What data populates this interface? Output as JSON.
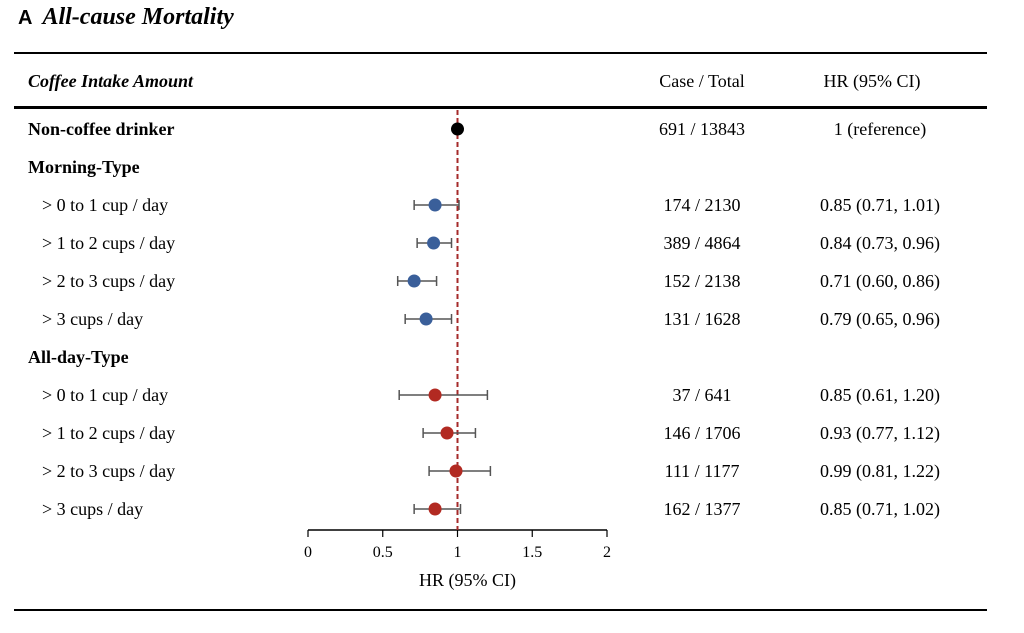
{
  "panel": {
    "letter": "A",
    "title": "All-cause Mortality"
  },
  "header": {
    "label": "Coffee Intake Amount",
    "case_total": "Case / Total",
    "hr": "HR (95% CI)"
  },
  "rows": [
    {
      "label": "Non-coffee drinker",
      "bold": true,
      "case_total": "691 / 13843",
      "hr_text": "1 (reference)"
    },
    {
      "label": "Morning-Type",
      "bold": true,
      "case_total": "",
      "hr_text": ""
    },
    {
      "label": "> 0 to 1 cup / day",
      "bold": false,
      "case_total": "174 / 2130",
      "hr_text": "0.85 (0.71, 1.01)"
    },
    {
      "label": "> 1 to 2 cups / day",
      "bold": false,
      "case_total": "389 / 4864",
      "hr_text": "0.84 (0.73, 0.96)"
    },
    {
      "label": "> 2 to 3 cups / day",
      "bold": false,
      "case_total": "152 / 2138",
      "hr_text": "0.71 (0.60, 0.86)"
    },
    {
      "label": "> 3 cups / day",
      "bold": false,
      "case_total": "131 / 1628",
      "hr_text": "0.79 (0.65, 0.96)"
    },
    {
      "label": "All-day-Type",
      "bold": true,
      "case_total": "",
      "hr_text": ""
    },
    {
      "label": "> 0 to 1 cup / day",
      "bold": false,
      "case_total": "37 / 641",
      "hr_text": "0.85 (0.61, 1.20)"
    },
    {
      "label": "> 1 to 2 cups / day",
      "bold": false,
      "case_total": "146 / 1706",
      "hr_text": "0.93 (0.77, 1.12)"
    },
    {
      "label": "> 2 to 3 cups / day",
      "bold": false,
      "case_total": "111 / 1177",
      "hr_text": "0.99 (0.81, 1.22)"
    },
    {
      "label": "> 3 cups / day",
      "bold": false,
      "case_total": "162 / 1377",
      "hr_text": "0.85 (0.71, 1.02)"
    }
  ],
  "chart_data": {
    "type": "forest",
    "title": "All-cause Mortality",
    "xlabel": "HR (95% CI)",
    "xlim": [
      0,
      2
    ],
    "xticks": [
      0,
      0.5,
      1,
      1.5,
      2
    ],
    "xtick_labels": [
      "0",
      "0.5",
      "1",
      "1.5",
      "2"
    ],
    "reference_line": 1,
    "reference_color": "#a52a2a",
    "series": [
      {
        "name": "Non-coffee drinker",
        "color": "#000000",
        "points": [
          {
            "row": 0,
            "hr": 1,
            "lo": null,
            "hi": null
          }
        ]
      },
      {
        "name": "Morning-Type",
        "color": "#3a5f9a",
        "points": [
          {
            "row": 2,
            "hr": 0.85,
            "lo": 0.71,
            "hi": 1.01
          },
          {
            "row": 3,
            "hr": 0.84,
            "lo": 0.73,
            "hi": 0.96
          },
          {
            "row": 4,
            "hr": 0.71,
            "lo": 0.6,
            "hi": 0.86
          },
          {
            "row": 5,
            "hr": 0.79,
            "lo": 0.65,
            "hi": 0.96
          }
        ]
      },
      {
        "name": "All-day-Type",
        "color": "#b22a22",
        "points": [
          {
            "row": 7,
            "hr": 0.85,
            "lo": 0.61,
            "hi": 1.2
          },
          {
            "row": 8,
            "hr": 0.93,
            "lo": 0.77,
            "hi": 1.12
          },
          {
            "row": 9,
            "hr": 0.99,
            "lo": 0.81,
            "hi": 1.22
          },
          {
            "row": 10,
            "hr": 0.85,
            "lo": 0.71,
            "hi": 1.02
          }
        ]
      }
    ]
  }
}
